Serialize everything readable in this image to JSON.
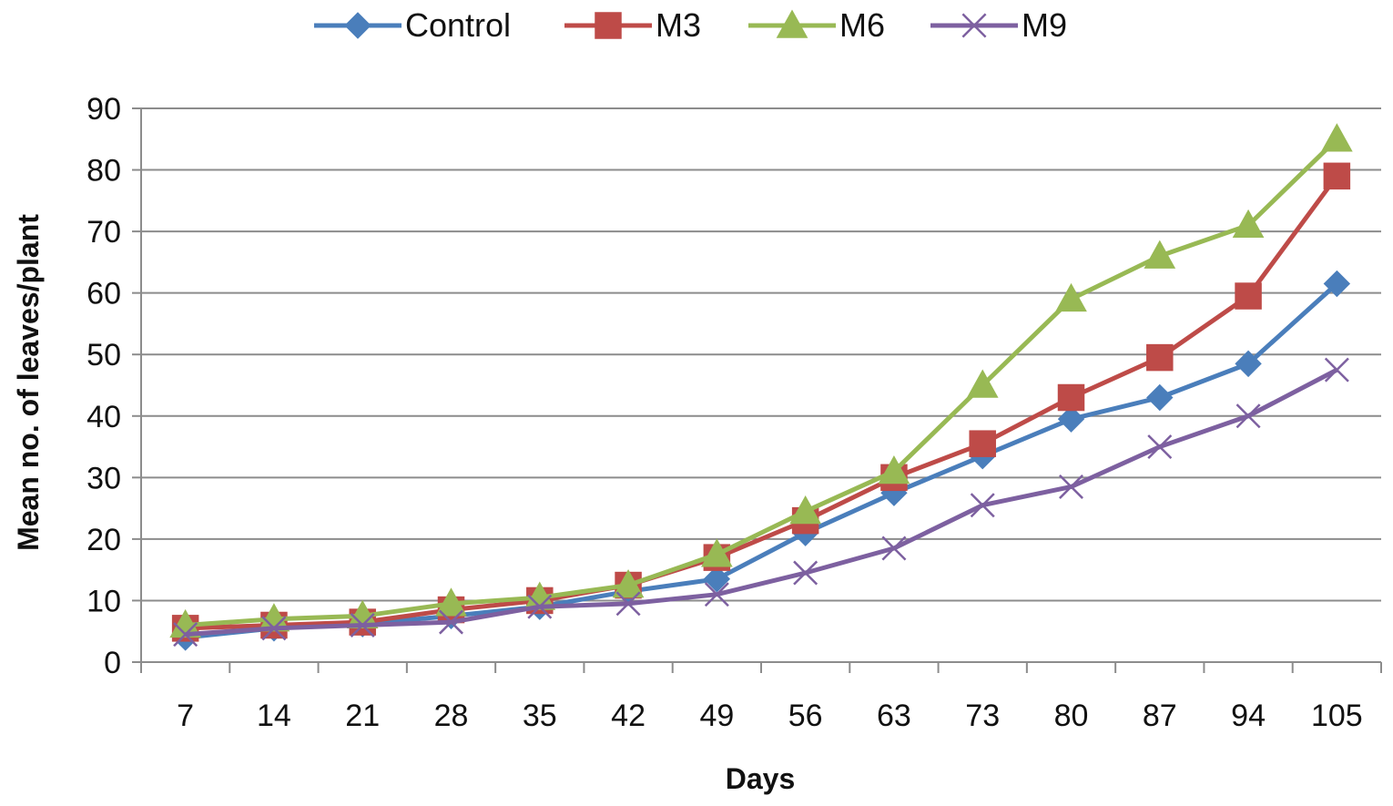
{
  "chart_data": {
    "type": "line",
    "title": "",
    "xlabel": "Days",
    "ylabel": "Mean no. of leaves/plant",
    "categories": [
      "7",
      "14",
      "21",
      "28",
      "35",
      "42",
      "49",
      "56",
      "63",
      "73",
      "80",
      "87",
      "94",
      "105"
    ],
    "ylim": [
      0,
      90
    ],
    "yticks": [
      0,
      10,
      20,
      30,
      40,
      50,
      60,
      70,
      80,
      90
    ],
    "grid": true,
    "legend_position": "top",
    "series": [
      {
        "name": "Control",
        "color": "#4A7EBB",
        "marker": "diamond",
        "values": [
          4,
          5.5,
          6.2,
          7.5,
          9,
          11.5,
          13.5,
          21,
          27.5,
          33.5,
          39.5,
          43,
          48.5,
          61.5
        ]
      },
      {
        "name": "M3",
        "color": "#BE4B48",
        "marker": "square",
        "values": [
          5.5,
          6,
          6.5,
          8.5,
          10,
          12.5,
          17,
          23,
          30,
          35.5,
          43,
          49.5,
          59.5,
          79
        ]
      },
      {
        "name": "M6",
        "color": "#98B954",
        "marker": "triangle",
        "values": [
          6,
          7,
          7.5,
          9.5,
          10.5,
          12.5,
          17.5,
          24.5,
          31,
          45,
          59,
          66,
          71,
          85
        ]
      },
      {
        "name": "M9",
        "color": "#7D60A0",
        "marker": "x",
        "values": [
          4.5,
          5.5,
          6,
          6.5,
          9,
          9.5,
          11,
          14.5,
          18.5,
          25.5,
          28.5,
          35,
          40,
          47.5
        ]
      }
    ]
  }
}
